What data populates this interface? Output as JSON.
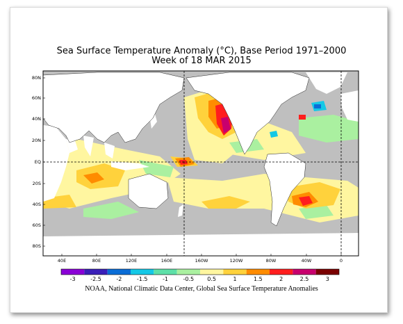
{
  "title": "Sea Surface Temperature Anomaly (°C), Base Period 1971–2000",
  "subtitle": "Week of 18 MAR 2015",
  "caption": "NOAA, National Climatic Data Center, Global Sea Surface Temperature Anomalies",
  "lat_labels": [
    "80N",
    "60N",
    "40N",
    "20N",
    "EQ",
    "20S",
    "40S",
    "60S",
    "80S"
  ],
  "lon_labels": [
    "40E",
    "80E",
    "120E",
    "160E",
    "160W",
    "120W",
    "80W",
    "40W",
    "0"
  ],
  "colorbar_labels": [
    "-3",
    "-2.5",
    "-2",
    "-1.5",
    "-1",
    "-0.5",
    "0.5",
    "1",
    "1.5",
    "2",
    "2.5",
    "3"
  ],
  "colors": {
    "land": "#ffffff",
    "ocean_neutral": "#bfbfbf",
    "scale": [
      "#8a00d6",
      "#3a1fb8",
      "#0a6dd6",
      "#14c8e6",
      "#5ee0a8",
      "#aaf0a0",
      "#fff6a0",
      "#ffd23c",
      "#ff8c00",
      "#ff1e1e",
      "#c8006e",
      "#7a0000"
    ]
  }
}
